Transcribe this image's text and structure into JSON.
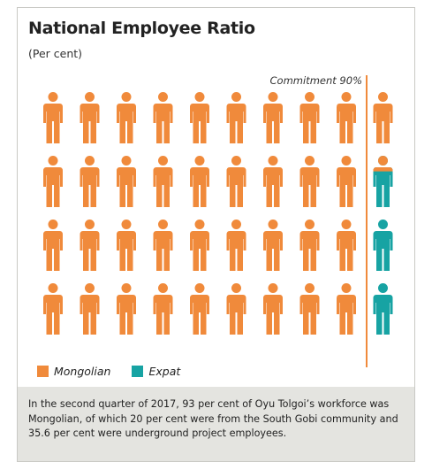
{
  "chart_data": {
    "type": "pictogram",
    "title": "National Employee Ratio",
    "subtitle": "(Per cent)",
    "rows": 4,
    "columns": 10,
    "total_icons": 40,
    "icon_value_percent": 2.5,
    "mongolian_percent": 93,
    "expat_percent": 7,
    "commitment_percent": 90,
    "commitment_label": "Commitment 90%",
    "series": [
      {
        "name": "Mongolian",
        "color": "#f08a3b"
      },
      {
        "name": "Expat",
        "color": "#17a3a3"
      }
    ]
  },
  "legend": {
    "mongolian": "Mongolian",
    "expat": "Expat"
  },
  "footnote": "In the second quarter of 2017, 93 per cent of Oyu Tolgoi’s workforce was Mongolian, of which 20 per cent were from the South Gobi community and 35.6 per cent were underground project employees."
}
